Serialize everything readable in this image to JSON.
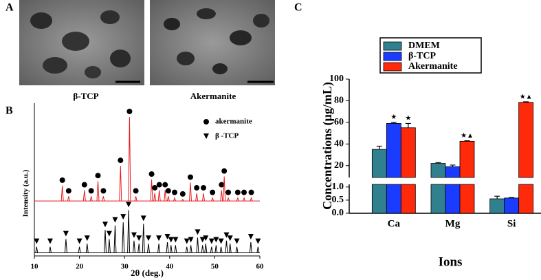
{
  "panel_labels": [
    "A",
    "B",
    "C"
  ],
  "images": [
    {
      "caption": "β-TCP"
    },
    {
      "caption": "Akermanite"
    }
  ],
  "chart_data": [
    {
      "type": "spectrum",
      "xlabel": "2θ (deg.)",
      "ylabel": "Intensity (a.u.)",
      "xlim": [
        10,
        60
      ],
      "xticks": [
        10,
        20,
        30,
        40,
        50,
        60
      ],
      "ylim": [
        0,
        100
      ],
      "series": [
        {
          "name": "akermanite",
          "color": "#e8191b",
          "marker": "circle",
          "baseline": 36,
          "x": [
            16.2,
            17.6,
            21.1,
            22.6,
            24.1,
            25.3,
            29.1,
            31.1,
            32.5,
            36,
            36.7,
            37.7,
            39,
            39.7,
            41.1,
            42.9,
            44.6,
            46,
            47.5,
            49.5,
            51.5,
            52.1,
            53,
            55.1,
            56.5,
            58.1
          ],
          "values": [
            46,
            39,
            43,
            39,
            49,
            39,
            59,
            91,
            39,
            50,
            41,
            43,
            43,
            39,
            38,
            37,
            48,
            41,
            41,
            38,
            43,
            52,
            38,
            38,
            38,
            38
          ]
        },
        {
          "name": "β -TCP",
          "color": "#000000",
          "marker": "triangle",
          "baseline": 2,
          "x": [
            10.5,
            13.5,
            17,
            20,
            21.7,
            25.7,
            26.6,
            27.9,
            29.7,
            30.9,
            32.1,
            33.2,
            34.2,
            35.3,
            37.6,
            39.5,
            40.3,
            41.3,
            43.8,
            44.7,
            46.2,
            47.3,
            48,
            49.3,
            50.3,
            51.4,
            52.6,
            53.4,
            54.9,
            58,
            59.6
          ],
          "values": [
            6,
            6,
            11,
            6,
            8,
            17,
            11,
            20,
            22,
            30,
            10,
            8,
            21,
            8,
            8,
            9,
            7,
            7,
            6,
            7,
            12,
            7,
            8,
            6,
            7,
            6,
            10,
            8,
            6,
            9,
            6
          ]
        }
      ]
    },
    {
      "type": "bar",
      "ylabel": "Concentrations (μg/mL)",
      "xlabel": "Ions",
      "categories": [
        "Ca",
        "Mg",
        "Si"
      ],
      "ylim_upper": [
        9,
        100
      ],
      "yticks_upper": [
        20,
        40,
        60,
        80,
        100
      ],
      "ylim": [
        0,
        1.1
      ],
      "yticks": [
        {
          "value": 0,
          "label": "0.0"
        },
        {
          "value": 0.5,
          "label": "0.5"
        },
        {
          "value": 1,
          "label": "1.0"
        }
      ],
      "series": [
        {
          "name": "DMEM",
          "color": "#31808f",
          "values": [
            35,
            22,
            0.55
          ],
          "errors": [
            3,
            0.8,
            0.1
          ],
          "annotations": [
            null,
            null,
            null
          ]
        },
        {
          "name": "β-TCP",
          "color": "#1a3cff",
          "values": [
            59,
            19,
            0.58
          ],
          "errors": [
            1,
            1.5,
            0.02
          ],
          "annotations": [
            "★",
            null,
            null
          ]
        },
        {
          "name": "Akermanite",
          "color": "#ff2a0a",
          "values": [
            55,
            42.5,
            78.5
          ],
          "errors": [
            4,
            0.5,
            0.5
          ],
          "annotations": [
            "★",
            "★▲",
            "★▲"
          ]
        }
      ]
    }
  ]
}
